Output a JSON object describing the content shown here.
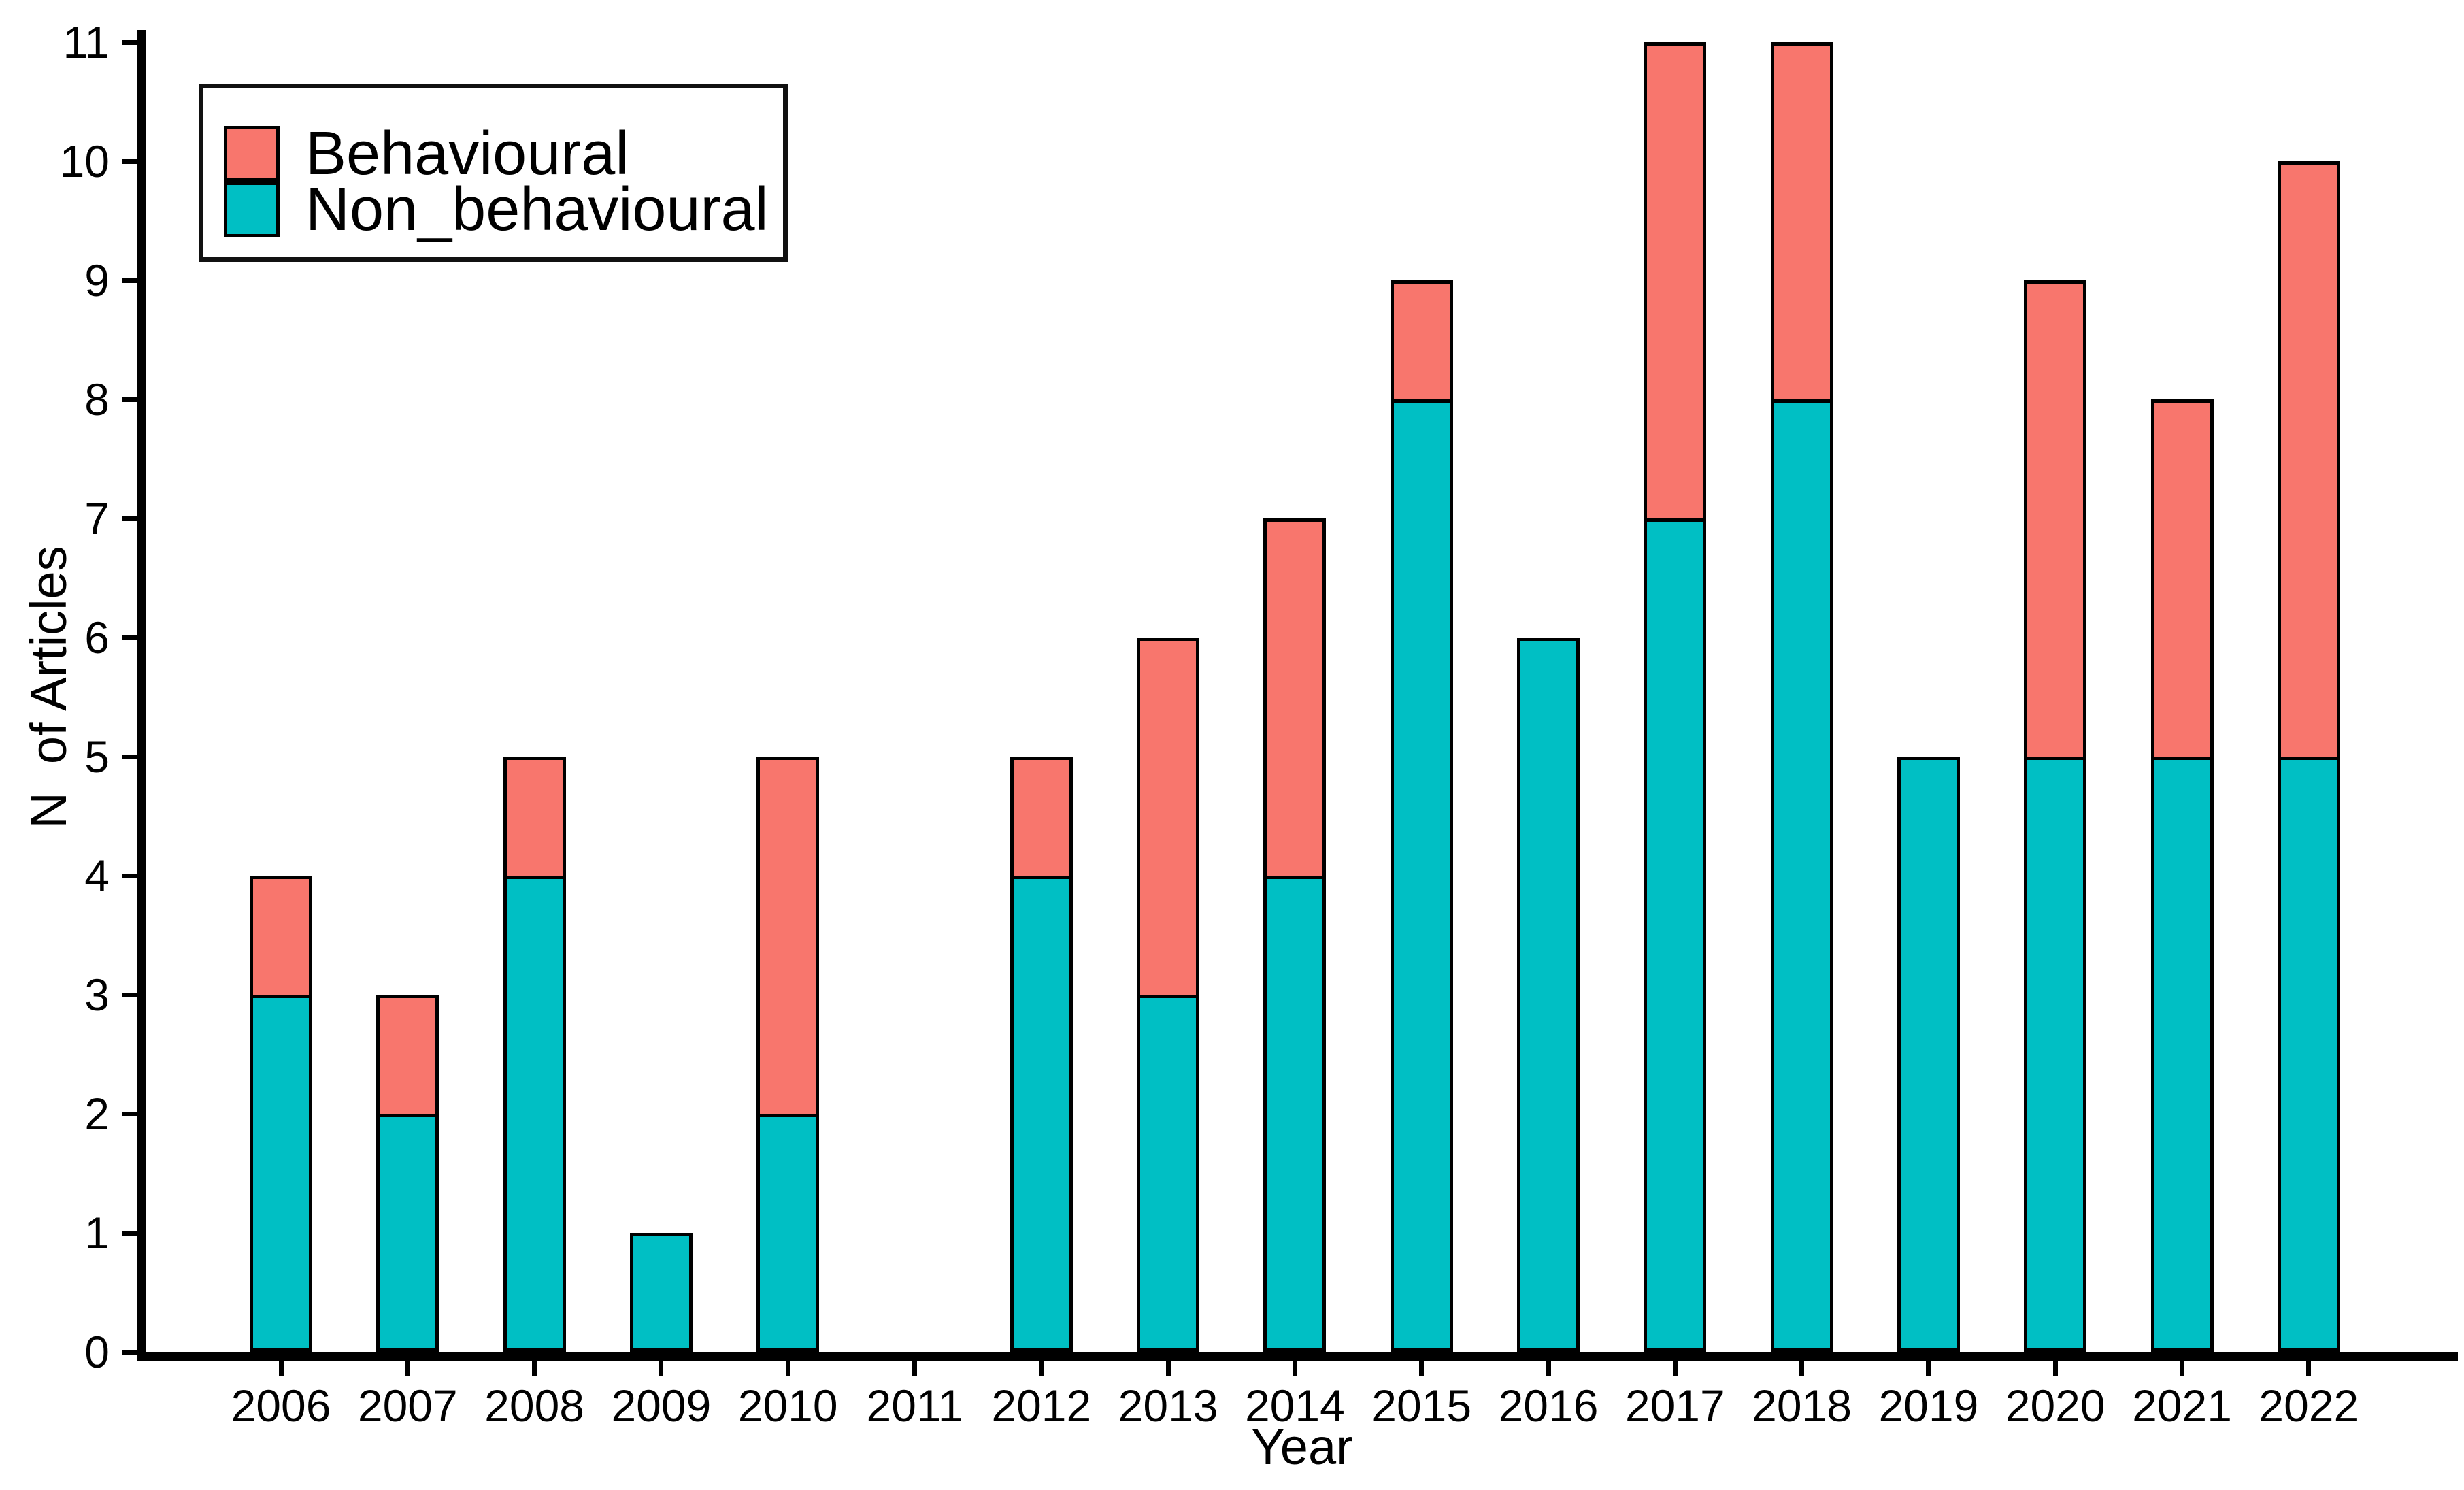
{
  "figure": {
    "background": "#ffffff",
    "text_color": "#000000",
    "axis_color": "#000000"
  },
  "chart_data": {
    "type": "bar",
    "stacked": true,
    "title": "",
    "xlabel": "Year",
    "ylabel": "N  of Articles",
    "ylim": [
      0,
      11
    ],
    "yticks": [
      0,
      1,
      2,
      3,
      4,
      5,
      6,
      7,
      8,
      9,
      10,
      11
    ],
    "categories": [
      "2006",
      "2007",
      "2008",
      "2009",
      "2010",
      "2011",
      "2012",
      "2013",
      "2014",
      "2015",
      "2016",
      "2017",
      "2018",
      "2019",
      "2020",
      "2021",
      "2022"
    ],
    "series": [
      {
        "name": "Behavioural",
        "color": "#F8766D",
        "values": [
          1,
          1,
          1,
          0,
          3,
          0,
          1,
          3,
          3,
          1,
          0,
          4,
          3,
          0,
          4,
          3,
          5
        ]
      },
      {
        "name": "Non_behavioural",
        "color": "#00BFC4",
        "values": [
          3,
          2,
          4,
          1,
          2,
          0,
          4,
          3,
          4,
          8,
          6,
          7,
          8,
          5,
          5,
          5,
          5
        ]
      }
    ],
    "totals": [
      4,
      3,
      5,
      1,
      5,
      0,
      5,
      6,
      7,
      9,
      6,
      11,
      11,
      5,
      9,
      8,
      10
    ],
    "stack_order_bottom_to_top": [
      1,
      0
    ],
    "legend_position": "top-left",
    "grid": false
  }
}
